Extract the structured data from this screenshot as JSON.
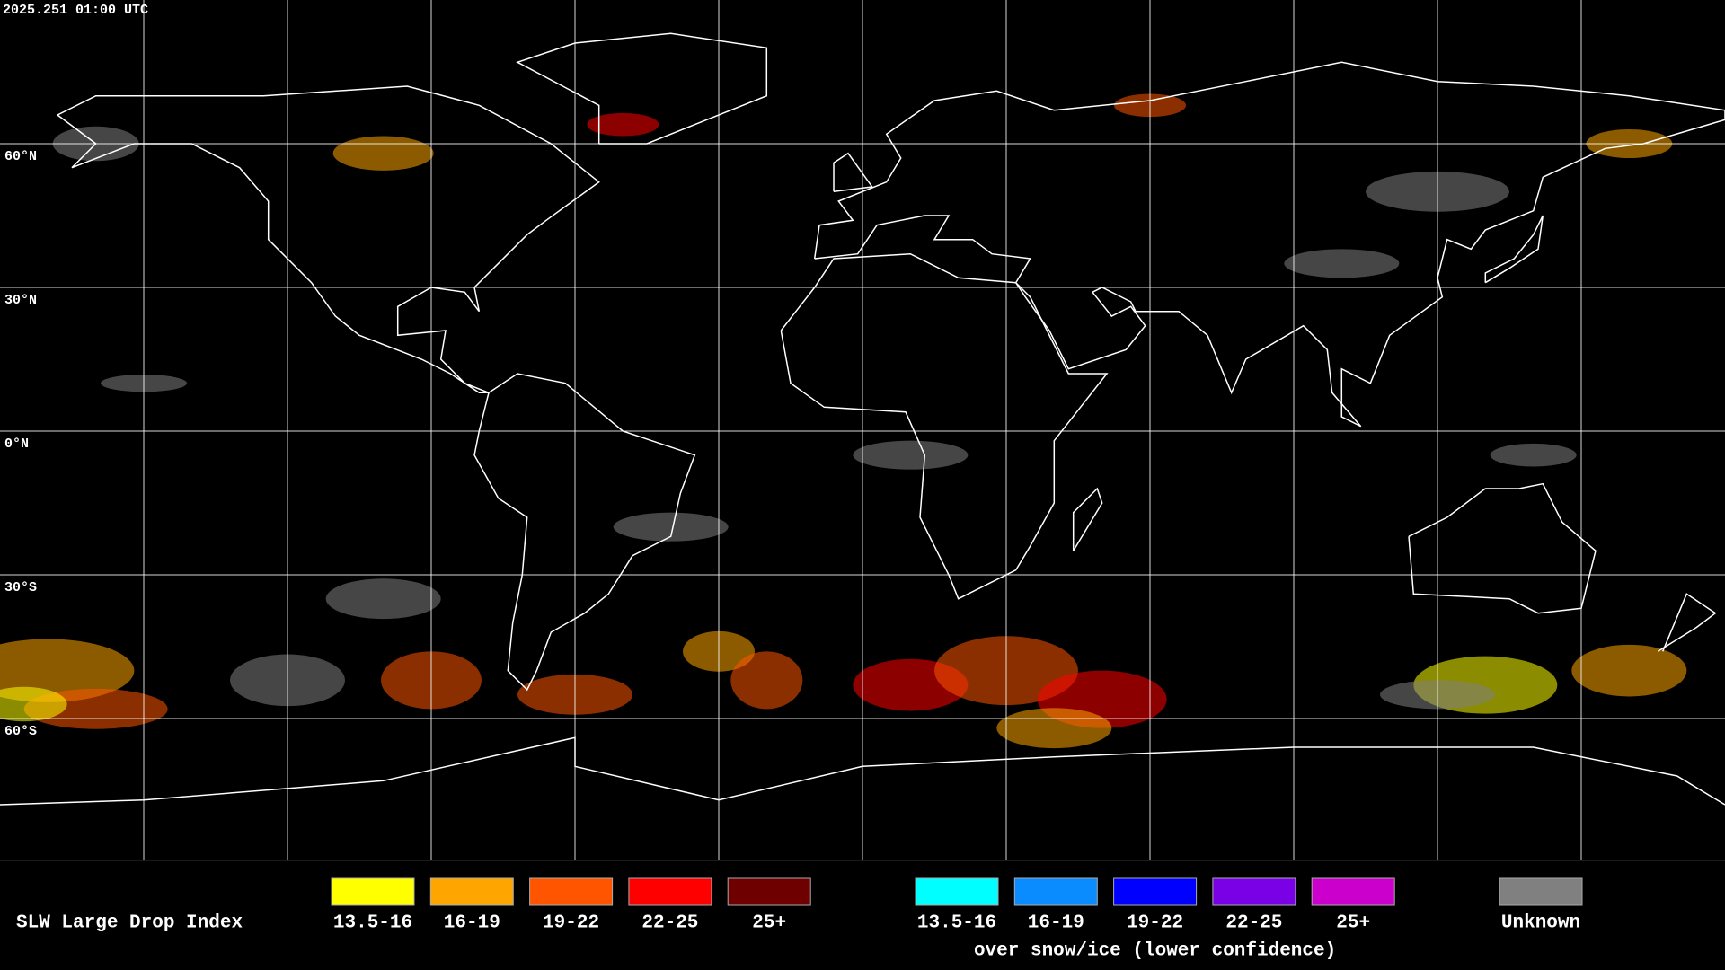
{
  "header": {
    "timestamp": "2025.251 01:00 UTC"
  },
  "map": {
    "latitude_labels": [
      "60°N",
      "30°N",
      "0°N",
      "30°S",
      "60°S"
    ]
  },
  "legend": {
    "title": "SLW Large Drop Index",
    "groups": [
      {
        "items": [
          {
            "label": "13.5-16",
            "color": "#ffff00"
          },
          {
            "label": "16-19",
            "color": "#ffa500"
          },
          {
            "label": "19-22",
            "color": "#ff5500"
          },
          {
            "label": "22-25",
            "color": "#ff0000"
          },
          {
            "label": "25+",
            "color": "#6e0000"
          }
        ]
      },
      {
        "items": [
          {
            "label": "13.5-16",
            "color": "#00ffff"
          },
          {
            "label": "16-19",
            "color": "#0a8cff"
          },
          {
            "label": "19-22",
            "color": "#0000ff"
          },
          {
            "label": "22-25",
            "color": "#7a00e6"
          },
          {
            "label": "25+",
            "color": "#cc00cc"
          }
        ],
        "caption": "over snow/ice (lower confidence)"
      },
      {
        "items": [
          {
            "label": "Unknown",
            "color": "#808080"
          }
        ]
      }
    ]
  }
}
